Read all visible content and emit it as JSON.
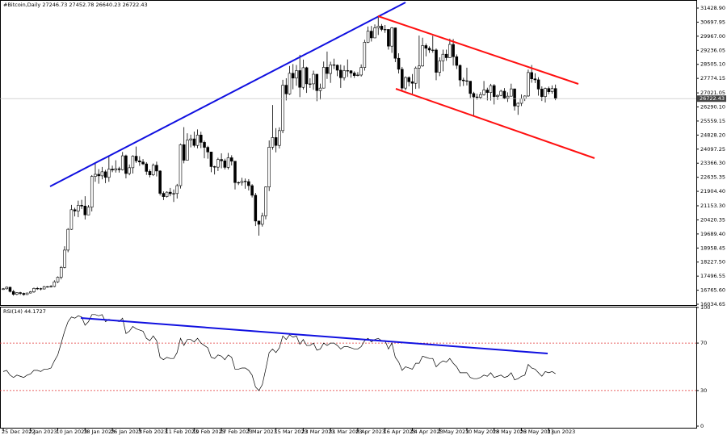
{
  "chart_data": [
    {
      "type": "candlestick",
      "title": "#Bitcoin,Daily",
      "candles": [
        [
          16800,
          16880,
          16780,
          16840
        ],
        [
          16840,
          16960,
          16800,
          16920
        ],
        [
          16920,
          16940,
          16650,
          16700
        ],
        [
          16700,
          16780,
          16480,
          16550
        ],
        [
          16550,
          16660,
          16500,
          16640
        ],
        [
          16640,
          16680,
          16520,
          16600
        ],
        [
          16600,
          16640,
          16480,
          16540
        ],
        [
          16540,
          16640,
          16520,
          16620
        ],
        [
          16620,
          16720,
          16590,
          16680
        ],
        [
          16680,
          16900,
          16630,
          16860
        ],
        [
          16860,
          16930,
          16780,
          16850
        ],
        [
          16850,
          16890,
          16760,
          16830
        ],
        [
          16830,
          16990,
          16800,
          16950
        ],
        [
          16950,
          16980,
          16900,
          16940
        ],
        [
          16940,
          17030,
          16910,
          16960
        ],
        [
          16960,
          17280,
          16920,
          17200
        ],
        [
          17200,
          17480,
          17140,
          17440
        ],
        [
          17440,
          18020,
          17330,
          17950
        ],
        [
          17950,
          19050,
          17900,
          18850
        ],
        [
          18850,
          19990,
          18740,
          19930
        ],
        [
          19930,
          21200,
          19900,
          20950
        ],
        [
          20950,
          21050,
          20600,
          20880
        ],
        [
          20880,
          21420,
          20560,
          21180
        ],
        [
          21180,
          21460,
          20990,
          21140
        ],
        [
          21140,
          21650,
          20440,
          20680
        ],
        [
          20680,
          21190,
          20670,
          21080
        ],
        [
          21080,
          22750,
          20860,
          22680
        ],
        [
          22680,
          23350,
          22400,
          22790
        ],
        [
          22790,
          23060,
          22300,
          22710
        ],
        [
          22710,
          23170,
          22530,
          22920
        ],
        [
          22920,
          23020,
          22330,
          22630
        ],
        [
          22630,
          23770,
          22400,
          23060
        ],
        [
          23060,
          23240,
          22900,
          23010
        ],
        [
          23010,
          23520,
          22880,
          23080
        ],
        [
          23080,
          23180,
          22880,
          23030
        ],
        [
          23030,
          23950,
          22990,
          23750
        ],
        [
          23750,
          23810,
          22580,
          22830
        ],
        [
          22830,
          23300,
          22740,
          23130
        ],
        [
          23130,
          23780,
          22830,
          23730
        ],
        [
          23730,
          24230,
          23380,
          23490
        ],
        [
          23490,
          23730,
          23230,
          23430
        ],
        [
          23430,
          23580,
          23270,
          23330
        ],
        [
          23330,
          23420,
          22760,
          22940
        ],
        [
          22940,
          23040,
          22630,
          22760
        ],
        [
          22760,
          23350,
          22700,
          23260
        ],
        [
          23260,
          23450,
          22680,
          22960
        ],
        [
          22960,
          23000,
          21690,
          21800
        ],
        [
          21800,
          21900,
          21450,
          21630
        ],
        [
          21630,
          21900,
          21580,
          21860
        ],
        [
          21860,
          22080,
          21650,
          21780
        ],
        [
          21780,
          22000,
          21350,
          21790
        ],
        [
          21790,
          22290,
          21530,
          22200
        ],
        [
          22200,
          24390,
          22050,
          24330
        ],
        [
          24330,
          25240,
          23360,
          23520
        ],
        [
          23520,
          24920,
          23510,
          24570
        ],
        [
          24570,
          24850,
          24190,
          24630
        ],
        [
          24630,
          25010,
          24190,
          24290
        ],
        [
          24290,
          25120,
          24140,
          24830
        ],
        [
          24830,
          25000,
          24150,
          24450
        ],
        [
          24450,
          24540,
          23620,
          24190
        ],
        [
          24190,
          24270,
          23600,
          23950
        ],
        [
          23950,
          23960,
          22900,
          23190
        ],
        [
          23190,
          23230,
          22780,
          23160
        ],
        [
          23160,
          23650,
          22960,
          23560
        ],
        [
          23560,
          23880,
          23100,
          23490
        ],
        [
          23490,
          23600,
          23040,
          23150
        ],
        [
          23150,
          23900,
          23040,
          23650
        ],
        [
          23650,
          23780,
          23250,
          23470
        ],
        [
          23470,
          23480,
          22000,
          22360
        ],
        [
          22360,
          22420,
          22230,
          22350
        ],
        [
          22350,
          22610,
          22200,
          22430
        ],
        [
          22430,
          22570,
          22040,
          22410
        ],
        [
          22410,
          22540,
          21950,
          22200
        ],
        [
          22200,
          22280,
          21590,
          21700
        ],
        [
          21700,
          21820,
          20100,
          20360
        ],
        [
          20360,
          20380,
          19600,
          20190
        ],
        [
          20190,
          20790,
          20070,
          20630
        ],
        [
          20630,
          22160,
          20450,
          22130
        ],
        [
          22130,
          24550,
          21920,
          24200
        ],
        [
          24200,
          26390,
          24070,
          24700
        ],
        [
          24700,
          25190,
          23930,
          24290
        ],
        [
          24290,
          25230,
          24130,
          25060
        ],
        [
          25060,
          27700,
          24930,
          27420
        ],
        [
          27420,
          27780,
          26630,
          26970
        ],
        [
          26970,
          28420,
          26920,
          28040
        ],
        [
          28040,
          28520,
          27210,
          27790
        ],
        [
          27790,
          28470,
          27390,
          28180
        ],
        [
          28180,
          29000,
          26800,
          27310
        ],
        [
          27310,
          28750,
          27200,
          28330
        ],
        [
          28330,
          28380,
          27020,
          27490
        ],
        [
          27490,
          27780,
          27280,
          27490
        ],
        [
          27490,
          28180,
          27180,
          27990
        ],
        [
          27990,
          28000,
          26590,
          27140
        ],
        [
          27140,
          27500,
          26680,
          27270
        ],
        [
          27270,
          28650,
          27250,
          28350
        ],
        [
          28350,
          29170,
          27750,
          28030
        ],
        [
          28030,
          28640,
          27540,
          28480
        ],
        [
          28480,
          28800,
          28260,
          28460
        ],
        [
          28460,
          28500,
          27890,
          28200
        ],
        [
          28200,
          28490,
          27280,
          27810
        ],
        [
          27810,
          28440,
          27670,
          28180
        ],
        [
          28180,
          28760,
          27850,
          28170
        ],
        [
          28170,
          28200,
          27810,
          28050
        ],
        [
          28050,
          28140,
          27800,
          27920
        ],
        [
          27920,
          28100,
          27880,
          27950
        ],
        [
          27950,
          28500,
          27870,
          28340
        ],
        [
          28340,
          29780,
          28180,
          29650
        ],
        [
          29650,
          30470,
          29610,
          30230
        ],
        [
          30230,
          30500,
          29690,
          29880
        ],
        [
          29880,
          30580,
          29860,
          30400
        ],
        [
          30400,
          31000,
          30030,
          30490
        ],
        [
          30490,
          30600,
          30230,
          30320
        ],
        [
          30320,
          30550,
          30140,
          30320
        ],
        [
          30320,
          30330,
          29270,
          29450
        ],
        [
          29450,
          30440,
          29100,
          30400
        ],
        [
          30400,
          30410,
          28620,
          28820
        ],
        [
          28820,
          29080,
          28030,
          28250
        ],
        [
          28250,
          28370,
          27130,
          27270
        ],
        [
          27270,
          27880,
          27150,
          27820
        ],
        [
          27820,
          27880,
          27360,
          27600
        ],
        [
          27600,
          28000,
          26970,
          27520
        ],
        [
          27520,
          28390,
          27230,
          28310
        ],
        [
          28310,
          30000,
          27250,
          28420
        ],
        [
          28420,
          29890,
          28380,
          29480
        ],
        [
          29480,
          29590,
          28920,
          29340
        ],
        [
          29340,
          29440,
          29100,
          29250
        ],
        [
          29250,
          29990,
          29110,
          29250
        ],
        [
          29250,
          29330,
          27680,
          28090
        ],
        [
          28090,
          28870,
          27890,
          28680
        ],
        [
          28680,
          29270,
          28140,
          29030
        ],
        [
          29030,
          29270,
          28690,
          28850
        ],
        [
          28850,
          29840,
          28830,
          29540
        ],
        [
          29540,
          29820,
          28440,
          28900
        ],
        [
          28900,
          29020,
          28260,
          28450
        ],
        [
          28450,
          28500,
          27350,
          27690
        ],
        [
          27690,
          27810,
          27380,
          27650
        ],
        [
          27650,
          28330,
          27410,
          27630
        ],
        [
          27630,
          27640,
          26760,
          26990
        ],
        [
          26990,
          27080,
          25820,
          26810
        ],
        [
          26810,
          26980,
          26670,
          26790
        ],
        [
          26790,
          27060,
          26690,
          26930
        ],
        [
          26930,
          27640,
          26880,
          27170
        ],
        [
          27170,
          27290,
          26630,
          27040
        ],
        [
          27040,
          27490,
          26620,
          27400
        ],
        [
          27400,
          27480,
          26420,
          26830
        ],
        [
          26830,
          26940,
          26660,
          26890
        ],
        [
          26890,
          27180,
          26850,
          27110
        ],
        [
          27110,
          27270,
          26690,
          26750
        ],
        [
          26750,
          27050,
          26550,
          26850
        ],
        [
          26850,
          27500,
          26830,
          27230
        ],
        [
          27230,
          27240,
          26100,
          26340
        ],
        [
          26340,
          26530,
          25880,
          26480
        ],
        [
          26480,
          26940,
          26340,
          26720
        ],
        [
          26720,
          26890,
          26600,
          26860
        ],
        [
          26860,
          28230,
          26820,
          28080
        ],
        [
          28080,
          28470,
          27550,
          27750
        ],
        [
          27750,
          28040,
          27530,
          27700
        ],
        [
          27700,
          27840,
          26880,
          27220
        ],
        [
          27220,
          27360,
          26600,
          26830
        ],
        [
          26830,
          27300,
          26520,
          27250
        ],
        [
          27250,
          27350,
          26950,
          27080
        ],
        [
          27080,
          27410,
          26980,
          27246.73
        ],
        [
          27246.73,
          27452.78,
          26640.23,
          26722.43
        ]
      ],
      "colors": {
        "up": "#ffffff",
        "down": "#000000",
        "outline": "#000000"
      },
      "xlim": [
        -0.95,
        203.3
      ],
      "ylim": [
        15993,
        31723
      ],
      "yticks": [
        {
          "value": 31428.9,
          "label": "31428.90"
        },
        30697.95,
        {
          "value": 29967,
          "label": "29967.00"
        },
        29236.05,
        {
          "value": 28505.1,
          "label": "28505.10"
        },
        27774.15,
        27021.05,
        {
          "value": 26290.1,
          "label": "26290.10"
        },
        25559.15,
        {
          "value": 24828.2,
          "label": "24828.20"
        },
        24097.25,
        {
          "value": 23366.3,
          "label": "23366.30"
        },
        22635.35,
        {
          "value": 21904.4,
          "label": "21904.40"
        },
        {
          "value": 21153.3,
          "label": "21153.30"
        },
        20420.35,
        {
          "value": 19689.4,
          "label": "19689.40"
        },
        18958.45,
        {
          "value": 18227.5,
          "label": "18227.50"
        },
        17496.55,
        {
          "value": 16765.6,
          "label": "16765.60"
        },
        16034.65
      ],
      "xticks": [
        {
          "value": 0,
          "label": "25 Dec 2022"
        },
        {
          "value": 8,
          "label": "2 Jan 2023"
        },
        {
          "value": 16,
          "label": "10 Jan 2023"
        },
        {
          "value": 24,
          "label": "18 Jan 2023"
        },
        {
          "value": 32,
          "label": "26 Jan 2023"
        },
        {
          "value": 40,
          "label": "3 Feb 2023"
        },
        {
          "value": 48,
          "label": "11 Feb 2023"
        },
        {
          "value": 56,
          "label": "19 Feb 2023"
        },
        {
          "value": 64,
          "label": "27 Feb 2023"
        },
        {
          "value": 72,
          "label": "7 Mar 2023"
        },
        {
          "value": 80,
          "label": "15 Mar 2023"
        },
        {
          "value": 88,
          "label": "23 Mar 2023"
        },
        {
          "value": 96,
          "label": "31 Mar 2023"
        },
        {
          "value": 104,
          "label": "8 Apr 2023"
        },
        {
          "value": 112,
          "label": "16 Apr 2023"
        },
        {
          "value": 120,
          "label": "24 Apr 2023"
        },
        {
          "value": 128,
          "label": "2 May 2023"
        },
        {
          "value": 136,
          "label": "10 May 2023"
        },
        {
          "value": 144,
          "label": "18 May 2023"
        },
        {
          "value": 152,
          "label": "26 May 2023"
        },
        {
          "value": 160,
          "label": "3 Jun 2023"
        }
      ]
    },
    {
      "type": "line",
      "title": "RSI(14)",
      "color": "#000000",
      "values": [
        46,
        47,
        43,
        41,
        43,
        42,
        41,
        43,
        44,
        47,
        47,
        46,
        48,
        48,
        49,
        55,
        60,
        70,
        80,
        88,
        92,
        91,
        93,
        92,
        85,
        88,
        94,
        94,
        93,
        94,
        88,
        90,
        89,
        89,
        88,
        91,
        78,
        80,
        84,
        82,
        81,
        80,
        74,
        72,
        76,
        72,
        58,
        56,
        58,
        57,
        57,
        62,
        74,
        68,
        73,
        73,
        71,
        74,
        70,
        68,
        66,
        58,
        57,
        60,
        59,
        56,
        60,
        58,
        48,
        48,
        49,
        49,
        47,
        43,
        33,
        30,
        35,
        48,
        62,
        65,
        62,
        66,
        76,
        73,
        77,
        75,
        76,
        69,
        73,
        68,
        68,
        70,
        64,
        65,
        70,
        68,
        70,
        70,
        68,
        65,
        67,
        67,
        66,
        65,
        65,
        67,
        72,
        74,
        71,
        73,
        74,
        72,
        72,
        65,
        70,
        58,
        54,
        47,
        50,
        49,
        48,
        53,
        53,
        59,
        58,
        57,
        57,
        50,
        53,
        55,
        54,
        57,
        53,
        50,
        45,
        45,
        45,
        41,
        40,
        40,
        41,
        43,
        42,
        45,
        41,
        42,
        43,
        41,
        42,
        45,
        39,
        40,
        42,
        43,
        52,
        49,
        48,
        45,
        42,
        46,
        45,
        46,
        44.1727
      ],
      "xlim": [
        -0.95,
        203.3
      ],
      "ylim": [
        0,
        100
      ],
      "yticks": [
        100,
        70,
        30,
        0
      ],
      "levels": [
        70,
        30
      ],
      "level_color": "#e03030"
    }
  ]
}
